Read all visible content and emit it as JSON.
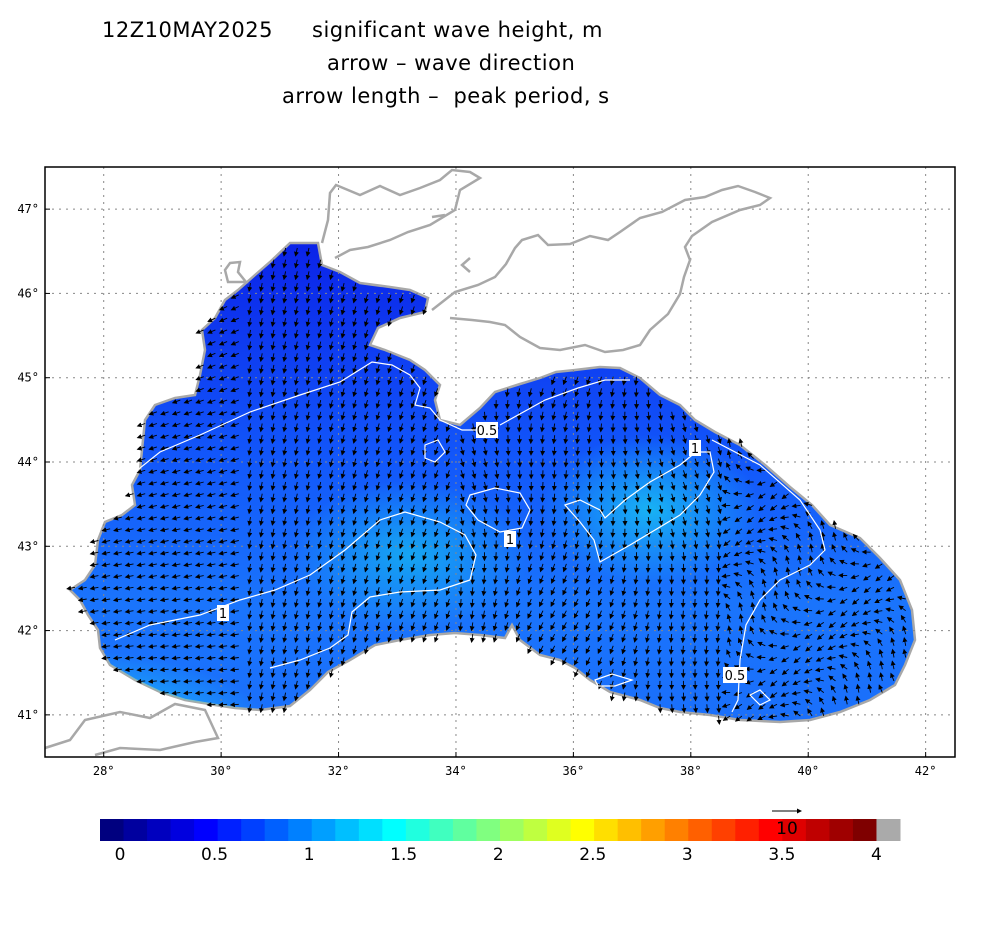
{
  "header": {
    "datetime": "12Z10MAY2025",
    "variable": "significant wave height, m",
    "arrow_line": "arrow – wave direction",
    "arrow_length_line": "arrow length –  peak period, s"
  },
  "map": {
    "lon_range": [
      27.0,
      42.5
    ],
    "lat_range": [
      40.5,
      47.5
    ],
    "lon_ticks": [
      "28°",
      "30°",
      "32°",
      "34°",
      "36°",
      "38°",
      "40°",
      "42°"
    ],
    "lat_ticks": [
      "47°",
      "46°",
      "45°",
      "44°",
      "43°",
      "42°",
      "41°"
    ],
    "contour_labels": [
      "0.5",
      "1",
      "1",
      "1",
      "0.5"
    ],
    "colors": {
      "land_coast": "#a8a8a8",
      "sea_low": "#0a1fe6",
      "sea_mid": "#1a63ff",
      "sea_high": "#0fe0f0",
      "contour": "#ffffff",
      "arrow": "#000000"
    }
  },
  "colorbar": {
    "labels": [
      "0",
      "0.5",
      "1",
      "1.5",
      "2",
      "2.5",
      "3",
      "3.5",
      "4"
    ],
    "reference_arrow_label": "10",
    "colors": [
      "#00007f",
      "#00009f",
      "#0000bf",
      "#0000df",
      "#0000ff",
      "#0020ff",
      "#0040ff",
      "#0060ff",
      "#0080ff",
      "#009fff",
      "#00bfff",
      "#00dfff",
      "#00ffff",
      "#20ffdf",
      "#40ffbf",
      "#60ff9f",
      "#80ff80",
      "#9fff60",
      "#bfff40",
      "#dfff20",
      "#ffff00",
      "#ffdf00",
      "#ffbf00",
      "#ff9f00",
      "#ff8000",
      "#ff6000",
      "#ff4000",
      "#ff2000",
      "#ff0000",
      "#df0000",
      "#bf0000",
      "#9f0000",
      "#7f0000",
      "#aaaaaa"
    ]
  }
}
